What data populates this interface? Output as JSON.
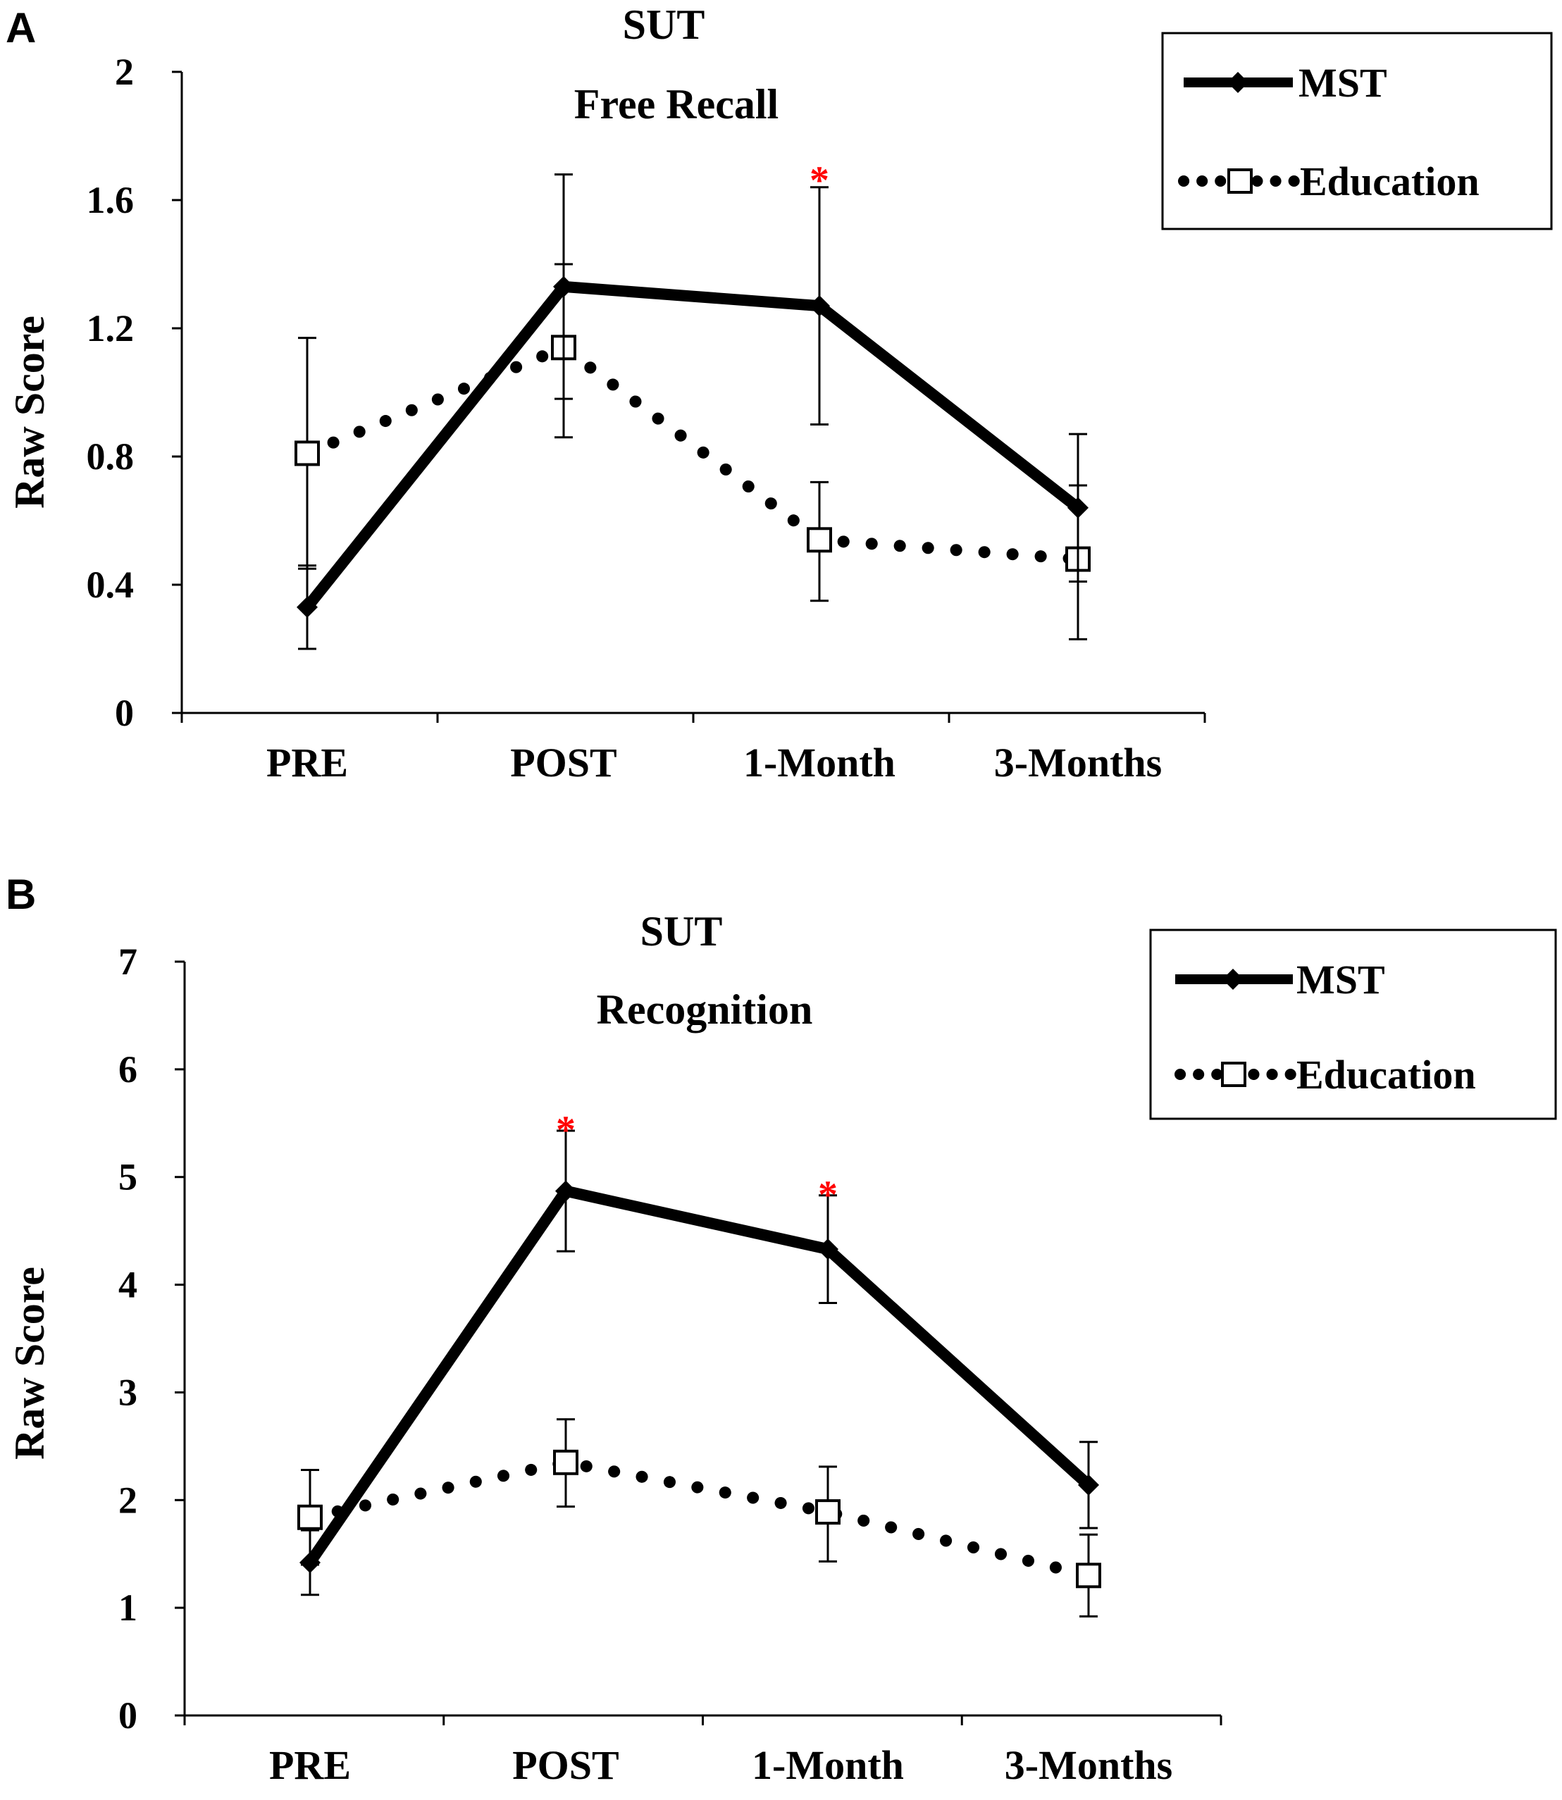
{
  "chart_data": [
    {
      "panel_label": "A",
      "type": "line",
      "title": "SUT",
      "subtitle": "Free Recall",
      "xlabel": "",
      "ylabel": "Raw Score",
      "categories": [
        "PRE",
        "POST",
        "1-Month",
        "3-Months"
      ],
      "ylim": [
        0,
        2
      ],
      "yticks": [
        0,
        0.4,
        0.8,
        1.2,
        1.6,
        2
      ],
      "ytick_labels": [
        "0",
        "0.4",
        "0.8",
        "1.2",
        "1.6",
        "2"
      ],
      "grid": false,
      "legend_position": "top-right",
      "series": [
        {
          "name": "MST",
          "style": "solid",
          "marker": "diamond",
          "values": [
            0.33,
            1.33,
            1.27,
            0.64
          ],
          "err_low": [
            0.2,
            0.98,
            0.9,
            0.41
          ],
          "err_high": [
            0.46,
            1.68,
            1.64,
            0.87
          ]
        },
        {
          "name": "Education",
          "style": "dotted",
          "marker": "open-square",
          "values": [
            0.81,
            1.14,
            0.54,
            0.48
          ],
          "err_low": [
            0.45,
            0.86,
            0.35,
            0.23
          ],
          "err_high": [
            1.17,
            1.4,
            0.72,
            0.71
          ]
        }
      ],
      "annotations": [
        {
          "text": "*",
          "category": "1-Month",
          "value": 1.7,
          "color": "#ff0000"
        }
      ]
    },
    {
      "panel_label": "B",
      "type": "line",
      "title": "SUT",
      "subtitle": "Recognition",
      "xlabel": "",
      "ylabel": "Raw Score",
      "categories": [
        "PRE",
        "POST",
        "1-Month",
        "3-Months"
      ],
      "ylim": [
        0,
        7
      ],
      "yticks": [
        0,
        1,
        2,
        3,
        4,
        5,
        6,
        7
      ],
      "ytick_labels": [
        "0",
        "1",
        "2",
        "3",
        "4",
        "5",
        "6",
        "7"
      ],
      "grid": false,
      "legend_position": "top-right",
      "series": [
        {
          "name": "MST",
          "style": "solid",
          "marker": "diamond",
          "values": [
            1.42,
            4.87,
            4.33,
            2.14
          ],
          "err_low": [
            1.12,
            4.31,
            3.83,
            1.74
          ],
          "err_high": [
            1.72,
            5.43,
            4.83,
            2.54
          ]
        },
        {
          "name": "Education",
          "style": "dotted",
          "marker": "open-square",
          "values": [
            1.84,
            2.35,
            1.89,
            1.3
          ],
          "err_low": [
            1.4,
            1.94,
            1.43,
            0.92
          ],
          "err_high": [
            2.28,
            2.75,
            2.31,
            1.68
          ]
        }
      ],
      "annotations": [
        {
          "text": "*",
          "category": "POST",
          "value": 5.55,
          "color": "#ff0000"
        },
        {
          "text": "*",
          "category": "1-Month",
          "value": 4.95,
          "color": "#ff0000"
        }
      ]
    }
  ]
}
